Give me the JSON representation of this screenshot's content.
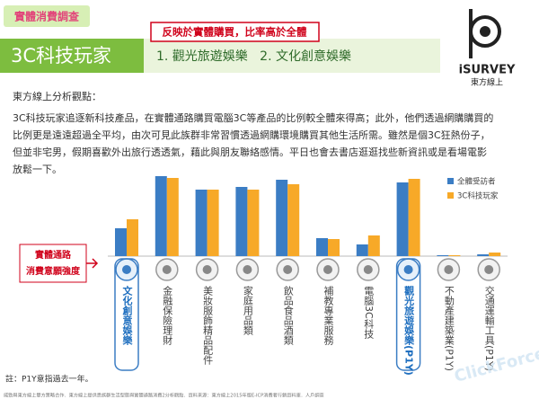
{
  "header": {
    "tag": "實體消費調查",
    "title": "3C科技玩家",
    "subtitle": "1. 觀光旅遊娛樂   2. 文化創意娛樂",
    "highlight": "反映於實體購買，比率高於全體",
    "logo_brand": "iSURVEY",
    "logo_name": "東方線上"
  },
  "analysis": {
    "heading": "東方線上分析觀點：",
    "lines": [
      "3C科技玩家追逐新科技產品，在實體通路購買電腦3C等產品的比例較全體來得高；此外，他們透過網購購買的",
      "比例更是遠遠超過全平均，由次可見此族群非常習慣透過網購環境購買其他生活所需。雖然是個3C狂熱份子，",
      "但並非宅男，假期喜歡外出旅行透透氣，藉此與朋友聯絡感情。平日也會去書店逛逛找些新資訊或是看場電影",
      "放鬆一下。"
    ]
  },
  "chart_data": {
    "type": "bar",
    "y_label": [
      "實體通路",
      "消費意願強度"
    ],
    "categories": [
      "文化創意娛樂",
      "金融保險理財",
      "美妝服飾精品配件",
      "家庭用品類",
      "飲品食品酒類",
      "補教專業服務",
      "電腦3C科技",
      "觀光旅遊娛樂(P1Y)",
      "不動產建築業(P1Y)",
      "交通運輸工具(P1Y)"
    ],
    "highlight": [
      0,
      7
    ],
    "series": [
      {
        "name": "全體受訪者",
        "color": "#3b7dc4",
        "values": [
          31,
          89,
          74,
          77,
          85,
          20,
          13,
          82,
          1,
          2
        ]
      },
      {
        "name": "3C科技玩家",
        "color": "#f7a928",
        "values": [
          41,
          87,
          74,
          74,
          80,
          19,
          23,
          86,
          1,
          4
        ]
      }
    ]
  },
  "footer": {
    "note": "註：P1Y意指過去一年。",
    "source": "威勁與東方線上雙方策略合作．東方線上提供悉族群生活型態與實體通路消費2分析觀點．資料來源：東方線上2015年版E-ICP消費者行銷資料庫．人戶調查",
    "watermark": "ClickForce"
  }
}
